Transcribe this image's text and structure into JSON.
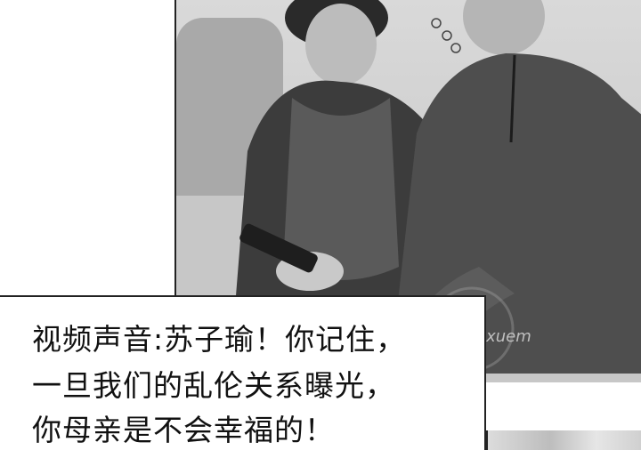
{
  "caption": {
    "line1": "视频声音:苏子瑜！你记住，",
    "line2": "一旦我们的乱伦关系曝光，",
    "line3": "你母亲是不会幸福的！"
  },
  "image": {
    "description_icon": "photo-illustration"
  },
  "watermark": {
    "text": "eixuem"
  }
}
